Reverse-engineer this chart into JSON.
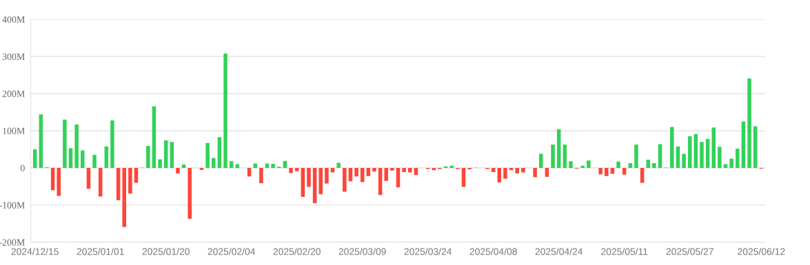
{
  "chart_data": {
    "type": "bar",
    "categories": [
      "2024/12/15",
      null,
      null,
      null,
      null,
      null,
      null,
      null,
      null,
      null,
      null,
      "2025/01/01",
      null,
      null,
      null,
      null,
      null,
      null,
      null,
      null,
      null,
      null,
      "2025/01/20",
      null,
      null,
      null,
      null,
      null,
      null,
      null,
      null,
      null,
      null,
      "2025/02/04",
      null,
      null,
      null,
      null,
      null,
      null,
      null,
      null,
      null,
      null,
      "2025/02/20",
      null,
      null,
      null,
      null,
      null,
      null,
      null,
      null,
      null,
      null,
      "2025/03/09",
      null,
      null,
      null,
      null,
      null,
      null,
      null,
      null,
      null,
      null,
      "2025/03/24",
      null,
      null,
      null,
      null,
      null,
      null,
      null,
      null,
      null,
      null,
      "2025/04/08",
      null,
      null,
      null,
      null,
      null,
      null,
      null,
      null,
      null,
      null,
      "2025/04/24",
      null,
      null,
      null,
      null,
      null,
      null,
      null,
      null,
      null,
      null,
      "2025/05/11",
      null,
      null,
      null,
      null,
      null,
      null,
      null,
      null,
      null,
      null,
      "2025/05/27",
      null,
      null,
      null,
      null,
      null,
      null,
      null,
      null,
      null,
      null,
      null,
      "2025/06/12"
    ],
    "values": [
      50,
      144,
      2,
      -60,
      -75,
      130,
      53,
      117,
      47,
      -56,
      35,
      -77,
      58,
      128,
      -87,
      -159,
      -69,
      -40,
      1,
      59,
      166,
      23,
      74,
      70,
      -15,
      9,
      -137,
      0,
      -5,
      67,
      27,
      83,
      308,
      18,
      10,
      0,
      -23,
      12,
      -41,
      12,
      11,
      3,
      19,
      -14,
      -9,
      -78,
      -51,
      -95,
      -71,
      -42,
      -12,
      14,
      -64,
      -36,
      -23,
      -38,
      -22,
      -10,
      -73,
      -35,
      -7,
      -52,
      -11,
      -12,
      -19,
      0,
      -3,
      -6,
      -3,
      4,
      6,
      -3,
      -51,
      -4,
      1,
      0,
      -3,
      -11,
      -39,
      -29,
      -6,
      -15,
      -12,
      0,
      -25,
      38,
      -24,
      63,
      104,
      63,
      18,
      -2,
      6,
      20,
      0,
      -17,
      -22,
      -16,
      17,
      -18,
      13,
      63,
      -40,
      22,
      13,
      64,
      1,
      110,
      58,
      38,
      85,
      91,
      70,
      78,
      109,
      57,
      10,
      25,
      52,
      125,
      241,
      112,
      -2
    ],
    "colors": [
      "#33d15a",
      "#33d15a",
      "#33d15a",
      "#ff453a",
      "#ff453a",
      "#33d15a",
      "#33d15a",
      "#33d15a",
      "#33d15a",
      "#ff453a",
      "#33d15a",
      "#ff453a",
      "#33d15a",
      "#33d15a",
      "#ff453a",
      "#ff453a",
      "#ff453a",
      "#ff453a",
      "#33d15a",
      "#33d15a",
      "#33d15a",
      "#33d15a",
      "#33d15a",
      "#33d15a",
      "#ff453a",
      "#33d15a",
      "#ff453a",
      "#33d15a",
      "#ff453a",
      "#33d15a",
      "#33d15a",
      "#33d15a",
      "#33d15a",
      "#33d15a",
      "#33d15a",
      "#33d15a",
      "#ff453a",
      "#33d15a",
      "#ff453a",
      "#33d15a",
      "#33d15a",
      "#33d15a",
      "#33d15a",
      "#ff453a",
      "#ff453a",
      "#ff453a",
      "#ff453a",
      "#ff453a",
      "#ff453a",
      "#ff453a",
      "#ff453a",
      "#33d15a",
      "#ff453a",
      "#ff453a",
      "#ff453a",
      "#ff453a",
      "#ff453a",
      "#ff453a",
      "#ff453a",
      "#ff453a",
      "#ff453a",
      "#ff453a",
      "#ff453a",
      "#ff453a",
      "#ff453a",
      "#33d15a",
      "#ff453a",
      "#ff453a",
      "#ff453a",
      "#33d15a",
      "#33d15a",
      "#ff453a",
      "#ff453a",
      "#ff453a",
      "#33d15a",
      "#33d15a",
      "#ff453a",
      "#ff453a",
      "#ff453a",
      "#ff453a",
      "#ff453a",
      "#ff453a",
      "#ff453a",
      "#33d15a",
      "#ff453a",
      "#33d15a",
      "#ff453a",
      "#33d15a",
      "#33d15a",
      "#33d15a",
      "#33d15a",
      "#ff453a",
      "#33d15a",
      "#33d15a",
      "#33d15a",
      "#ff453a",
      "#ff453a",
      "#ff453a",
      "#33d15a",
      "#ff453a",
      "#33d15a",
      "#33d15a",
      "#ff453a",
      "#33d15a",
      "#33d15a",
      "#33d15a",
      "#33d15a",
      "#33d15a",
      "#33d15a",
      "#33d15a",
      "#33d15a",
      "#33d15a",
      "#33d15a",
      "#33d15a",
      "#33d15a",
      "#33d15a",
      "#33d15a",
      "#33d15a",
      "#33d15a",
      "#33d15a",
      "#33d15a",
      "#33d15a",
      "#ff453a"
    ],
    "ylim": [
      -200,
      400
    ],
    "yticks": [
      {
        "value": -200,
        "label": "-200M"
      },
      {
        "value": -100,
        "label": "-100M"
      },
      0,
      {
        "value": 100,
        "label": "100M"
      },
      {
        "value": 200,
        "label": "200M"
      },
      {
        "value": 300,
        "label": "300M"
      },
      {
        "value": 400,
        "label": "400M"
      }
    ],
    "grid": "y"
  }
}
